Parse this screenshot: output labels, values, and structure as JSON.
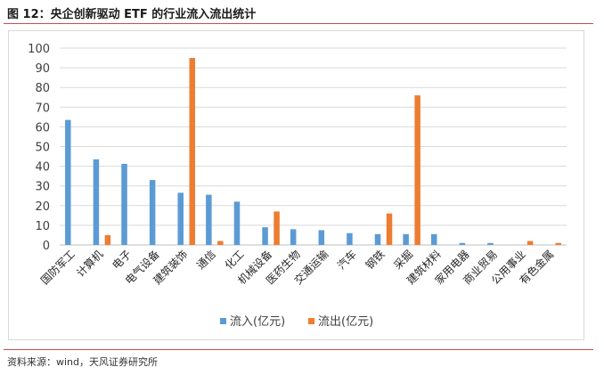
{
  "header": {
    "title": "图 12：央企创新驱动 ETF 的行业流入流出统计"
  },
  "footer": {
    "source": "资料来源：wind，天风证券研究所"
  },
  "chart_data": {
    "type": "bar",
    "title": "",
    "xlabel": "",
    "ylabel": "",
    "ylim": [
      0,
      100
    ],
    "yticks": [
      0,
      10,
      20,
      30,
      40,
      50,
      60,
      70,
      80,
      90,
      100
    ],
    "grid": true,
    "legend_position": "bottom",
    "categories": [
      "国防军工",
      "计算机",
      "电子",
      "电气设备",
      "建筑装饰",
      "通信",
      "化工",
      "机械设备",
      "医药生物",
      "交通运输",
      "汽车",
      "钢铁",
      "采掘",
      "建筑材料",
      "家用电器",
      "商业贸易",
      "公用事业",
      "有色金属"
    ],
    "series": [
      {
        "name": "流入(亿元)",
        "color": "#5b9bd5",
        "values": [
          63.5,
          43.5,
          41.2,
          33,
          26.5,
          25.5,
          22,
          9,
          8,
          7.5,
          6,
          5.5,
          5.5,
          5.5,
          1,
          1,
          0,
          0
        ]
      },
      {
        "name": "流出(亿元)",
        "color": "#ed7d31",
        "values": [
          0,
          5,
          0,
          0,
          95,
          2,
          0,
          17,
          0,
          0,
          0,
          16,
          76,
          0,
          0,
          0,
          2,
          1
        ]
      }
    ]
  }
}
